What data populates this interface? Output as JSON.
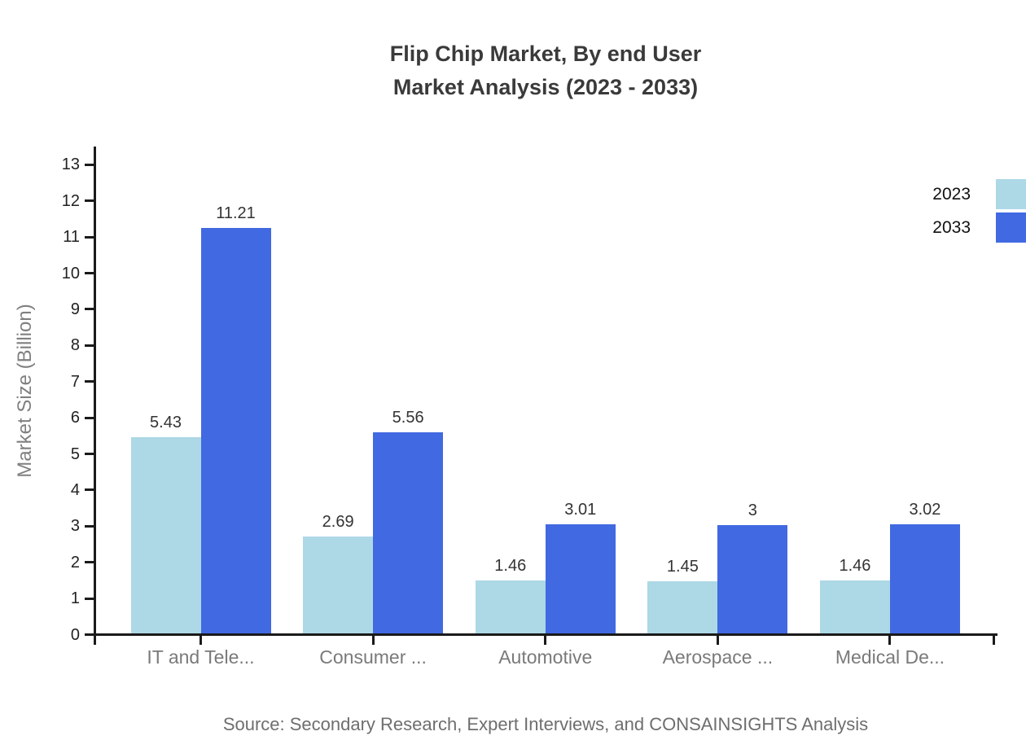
{
  "chart_data": {
    "type": "bar",
    "title_line1": "Flip Chip Market, By end User",
    "title_line2": "Market Analysis (2023 - 2033)",
    "ylabel": "Market Size (Billion)",
    "xlabel": "",
    "categories": [
      "IT and Tele...",
      "Consumer ...",
      "Automotive",
      "Aerospace ...",
      "Medical De..."
    ],
    "series": [
      {
        "name": "2023",
        "color": "#ADD8E6",
        "values": [
          5.43,
          2.69,
          1.46,
          1.45,
          1.46
        ]
      },
      {
        "name": "2033",
        "color": "#4169E1",
        "values": [
          11.21,
          5.56,
          3.01,
          3,
          3.02
        ]
      }
    ],
    "ylim": [
      0,
      13
    ],
    "yticks": [
      0,
      1,
      2,
      3,
      4,
      5,
      6,
      7,
      8,
      9,
      10,
      11,
      12,
      13
    ],
    "grid": false,
    "legend_position": "top-right",
    "value_labels_shown": true
  },
  "colors": {
    "background": "#ffffff",
    "axis": "#1a1a1a",
    "title_text": "#3a3a3a",
    "tick_label_text": "#222222",
    "category_label_text": "#7a7a7a",
    "axis_title_text": "#808080",
    "value_label_text": "#333333",
    "legend_text": "#111111",
    "source_text": "#6e6e6e",
    "series_2023": "#ADD8E6",
    "series_2033": "#4169E1"
  },
  "source_note": "Source: Secondary Research, Expert Interviews, and CONSAINSIGHTS Analysis"
}
